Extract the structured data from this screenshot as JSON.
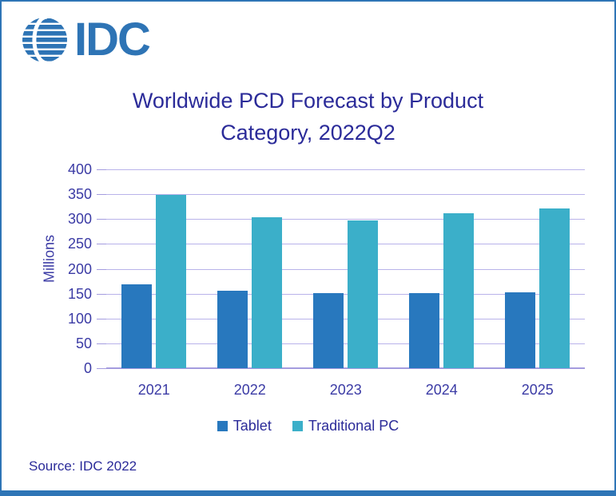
{
  "logo": {
    "text": "IDC"
  },
  "title_lines": {
    "line1": "Worldwide PCD Forecast by Product",
    "line2": "Category, 2022Q2"
  },
  "source_note": "Source: IDC 2022",
  "colors": {
    "border": "#2E75B6",
    "footer_bar": "#2E75B6",
    "logo": "#2E74B5",
    "title_text": "#2B2B99",
    "axis_text": "#3B3BA5",
    "gridline": "#B9B3EA",
    "axis_line": "#A49CDF",
    "tablet": "#2878BE",
    "traditional_pc": "#3BAFC9"
  },
  "chart_data": {
    "type": "bar",
    "title": "Worldwide PCD Forecast by Product Category, 2022Q2",
    "categories": [
      "2021",
      "2022",
      "2023",
      "2024",
      "2025"
    ],
    "series": [
      {
        "name": "Tablet",
        "color": "#2878BE",
        "values": [
          168,
          156,
          151,
          151,
          152
        ]
      },
      {
        "name": "Traditional PC",
        "color": "#3BAFC9",
        "values": [
          349,
          304,
          297,
          312,
          321
        ]
      }
    ],
    "xlabel": "",
    "ylabel": "Millions",
    "ylim": [
      0,
      400
    ],
    "yticks": [
      0,
      50,
      100,
      150,
      200,
      250,
      300,
      350,
      400
    ],
    "grid": true,
    "legend_position": "bottom"
  }
}
